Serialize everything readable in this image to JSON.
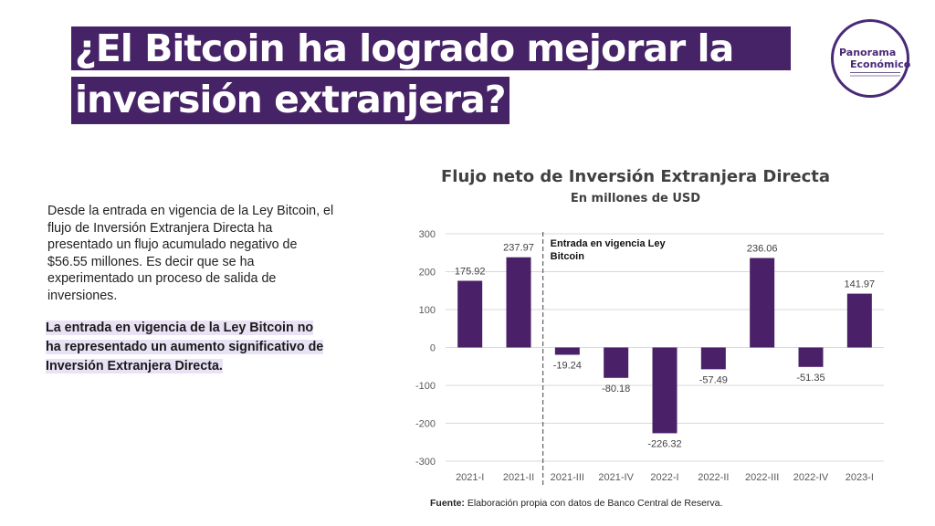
{
  "header": {
    "title_line1": "¿El Bitcoin ha logrado mejorar la",
    "title_line2": "inversión extranjera?"
  },
  "logo": {
    "line1": "Panorama",
    "line2": "Económico"
  },
  "body": {
    "paragraph": "Desde la entrada en vigencia de la Ley Bitcoin, el flujo de Inversión Extranjera Directa ha presentado un flujo acumulado negativo de $56.55 millones. Es decir que se ha experimentado un proceso de salida de inversiones.",
    "highlight": "La entrada en vigencia de la Ley Bitcoin no ha representado un aumento significativo de Inversión Extranjera Directa."
  },
  "colors": {
    "brand": "#462266",
    "bar": "#4a2068",
    "highlight_bg": "#e9e2f5"
  },
  "chart_data": {
    "type": "bar",
    "title": "Flujo neto de Inversión Extranjera Directa",
    "subtitle": "En millones de USD",
    "xlabel": "",
    "ylabel": "",
    "categories": [
      "2021-I",
      "2021-II",
      "2021-III",
      "2021-IV",
      "2022-I",
      "2022-II",
      "2022-III",
      "2022-IV",
      "2023-I"
    ],
    "values": [
      175.92,
      237.97,
      -19.24,
      -80.18,
      -226.32,
      -57.49,
      236.06,
      -51.35,
      141.97
    ],
    "data_labels": [
      "175.92",
      "237.97",
      "-19.24",
      "-80.18",
      "-226.32",
      "-57.49",
      "236.06",
      "-51.35",
      "141.97"
    ],
    "ylim": [
      -300,
      300
    ],
    "yticks": [
      300,
      200,
      100,
      0,
      -100,
      -200,
      -300
    ],
    "ytick_labels": [
      "300",
      "200",
      "100",
      "0",
      "-100",
      "-200",
      "-300"
    ],
    "grid": true,
    "legend": "none",
    "annotation": {
      "text_line1": "Entrada en vigencia Ley",
      "text_line2": "Bitcoin",
      "between_categories": [
        "2021-II",
        "2021-III"
      ],
      "style": "dashed vertical line"
    }
  },
  "footer": {
    "label": "Fuente:",
    "text": " Elaboración propia con datos de Banco Central de Reserva."
  }
}
